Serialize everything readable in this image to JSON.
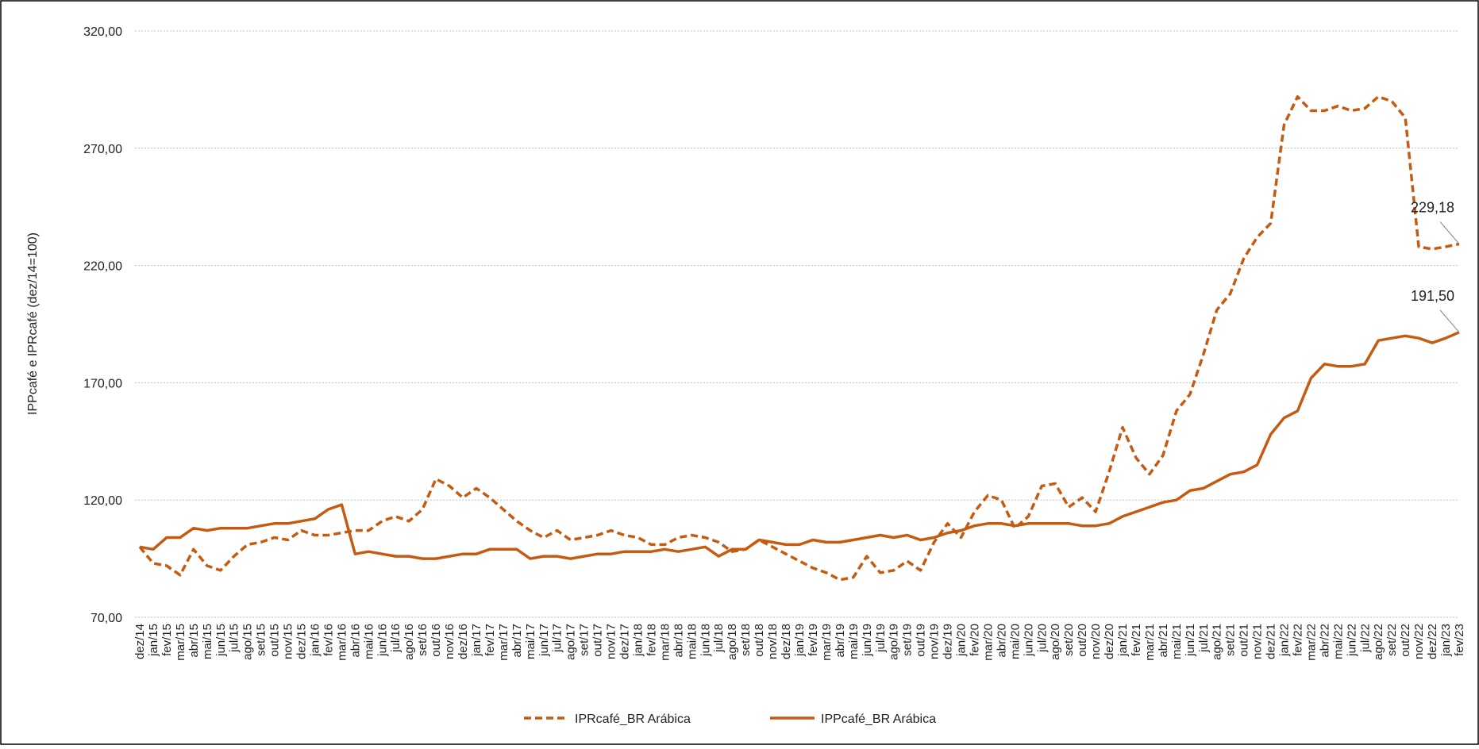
{
  "chart_data": {
    "type": "line",
    "y_label": "IPPcafé e IPRcafé (dez/14=100)",
    "categories": [
      "dez/14",
      "jan/15",
      "fev/15",
      "mar/15",
      "abr/15",
      "mai/15",
      "jun/15",
      "jul/15",
      "ago/15",
      "set/15",
      "out/15",
      "nov/15",
      "dez/15",
      "jan/16",
      "fev/16",
      "mar/16",
      "abr/16",
      "mai/16",
      "jun/16",
      "jul/16",
      "ago/16",
      "set/16",
      "out/16",
      "nov/16",
      "dez/16",
      "jan/17",
      "fev/17",
      "mar/17",
      "abr/17",
      "mai/17",
      "jun/17",
      "jul/17",
      "ago/17",
      "set/17",
      "out/17",
      "nov/17",
      "dez/17",
      "jan/18",
      "fev/18",
      "mar/18",
      "abr/18",
      "mai/18",
      "jun/18",
      "jul/18",
      "ago/18",
      "set/18",
      "out/18",
      "nov/18",
      "dez/18",
      "jan/19",
      "fev/19",
      "mar/19",
      "abr/19",
      "mai/19",
      "jun/19",
      "jul/19",
      "ago/19",
      "set/19",
      "out/19",
      "nov/19",
      "dez/19",
      "jan/20",
      "fev/20",
      "mar/20",
      "abr/20",
      "mai/20",
      "jun/20",
      "jul/20",
      "ago/20",
      "set/20",
      "out/20",
      "nov/20",
      "dez/20",
      "jan/21",
      "fev/21",
      "mar/21",
      "abr/21",
      "mai/21",
      "jun/21",
      "jul/21",
      "ago/21",
      "set/21",
      "out/21",
      "nov/21",
      "dez/21",
      "jan/22",
      "fev/22",
      "mar/22",
      "abr/22",
      "mai/22",
      "jun/22",
      "jul/22",
      "ago/22",
      "set/22",
      "out/22",
      "nov/22",
      "dez/22",
      "jan/23",
      "fev/23"
    ],
    "series": [
      {
        "name": "IPRcafé_BR Arábica",
        "color": "#c55a11",
        "dash": true,
        "values": [
          100,
          93,
          92,
          88,
          99,
          92,
          90,
          96,
          101,
          102,
          104,
          103,
          107,
          105,
          105,
          106,
          107,
          107,
          111,
          113,
          111,
          116,
          129,
          126,
          121,
          125,
          121,
          116,
          111,
          107,
          104,
          107,
          103,
          104,
          105,
          107,
          105,
          104,
          101,
          101,
          104,
          105,
          104,
          102,
          98,
          99,
          103,
          100,
          97,
          94,
          91,
          89,
          86,
          87,
          96,
          89,
          90,
          94,
          90,
          102,
          110,
          104,
          115,
          122,
          120,
          108,
          113,
          126,
          127,
          117,
          121,
          115,
          132,
          151,
          138,
          131,
          139,
          158,
          165,
          182,
          201,
          208,
          223,
          232,
          238,
          280,
          292,
          286,
          286,
          288,
          286,
          287,
          292,
          290,
          283,
          228,
          227,
          228,
          229.18
        ],
        "value_labels": [
          null,
          null,
          null,
          null,
          null,
          null,
          null,
          null,
          null,
          null,
          null,
          null,
          null,
          null,
          null,
          null,
          null,
          null,
          null,
          null,
          null,
          null,
          null,
          null,
          null,
          null,
          null,
          null,
          null,
          null,
          null,
          null,
          null,
          null,
          null,
          null,
          null,
          null,
          null,
          null,
          null,
          null,
          null,
          null,
          null,
          null,
          null,
          null,
          null,
          null,
          null,
          null,
          null,
          null,
          null,
          null,
          null,
          null,
          null,
          null,
          null,
          null,
          null,
          null,
          null,
          null,
          null,
          null,
          null,
          null,
          null,
          null,
          null,
          null,
          null,
          null,
          null,
          null,
          null,
          null,
          null,
          null,
          null,
          null,
          null,
          null,
          null,
          null,
          null,
          null,
          null,
          null,
          null,
          null,
          null,
          null,
          null,
          null,
          "229,18"
        ]
      },
      {
        "name": "IPPcafé_BR Arábica",
        "color": "#c55a11",
        "dash": false,
        "values": [
          100,
          99,
          104,
          104,
          108,
          107,
          108,
          108,
          108,
          109,
          110,
          110,
          111,
          112,
          116,
          118,
          97,
          98,
          97,
          96,
          96,
          95,
          95,
          96,
          97,
          97,
          99,
          99,
          99,
          95,
          96,
          96,
          95,
          96,
          97,
          97,
          98,
          98,
          98,
          99,
          98,
          99,
          100,
          96,
          99,
          99,
          103,
          102,
          101,
          101,
          103,
          102,
          102,
          103,
          104,
          105,
          104,
          105,
          103,
          104,
          106,
          107,
          109,
          110,
          110,
          109,
          110,
          110,
          110,
          110,
          109,
          109,
          110,
          113,
          115,
          117,
          119,
          120,
          124,
          125,
          128,
          131,
          132,
          135,
          148,
          155,
          158,
          172,
          178,
          177,
          177,
          178,
          188,
          189,
          190,
          189,
          187,
          189,
          191.5
        ],
        "value_labels": [
          null,
          null,
          null,
          null,
          null,
          null,
          null,
          null,
          null,
          null,
          null,
          null,
          null,
          null,
          null,
          null,
          null,
          null,
          null,
          null,
          null,
          null,
          null,
          null,
          null,
          null,
          null,
          null,
          null,
          null,
          null,
          null,
          null,
          null,
          null,
          null,
          null,
          null,
          null,
          null,
          null,
          null,
          null,
          null,
          null,
          null,
          null,
          null,
          null,
          null,
          null,
          null,
          null,
          null,
          null,
          null,
          null,
          null,
          null,
          null,
          null,
          null,
          null,
          null,
          null,
          null,
          null,
          null,
          null,
          null,
          null,
          null,
          null,
          null,
          null,
          null,
          null,
          null,
          null,
          null,
          null,
          null,
          null,
          null,
          null,
          null,
          null,
          null,
          null,
          null,
          null,
          null,
          null,
          null,
          null,
          null,
          null,
          null,
          "191,50"
        ]
      }
    ],
    "ylim": [
      70,
      320
    ],
    "yticks": [
      {
        "value": 70,
        "label": "70,00"
      },
      {
        "value": 120,
        "label": "120,00"
      },
      {
        "value": 170,
        "label": "170,00"
      },
      {
        "value": 220,
        "label": "220,00"
      },
      {
        "value": 270,
        "label": "270,00"
      },
      {
        "value": 320,
        "label": "320,00"
      }
    ],
    "grid": true,
    "legend": "bottom"
  }
}
